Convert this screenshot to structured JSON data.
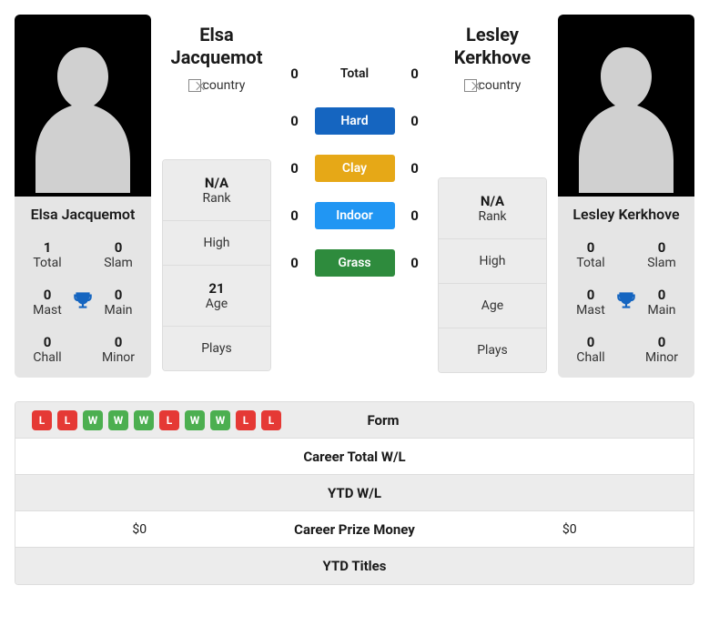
{
  "colors": {
    "hard": "#1565c0",
    "clay": "#e6a817",
    "indoor": "#2196f3",
    "grass": "#2e8b3d",
    "win": "#4caf50",
    "loss": "#e53935",
    "trophy": "#1565c0",
    "silhouette": "#d0d0d0"
  },
  "h2h": {
    "total_label": "Total",
    "hard_label": "Hard",
    "clay_label": "Clay",
    "indoor_label": "Indoor",
    "grass_label": "Grass",
    "p1": {
      "total": "0",
      "hard": "0",
      "clay": "0",
      "indoor": "0",
      "grass": "0"
    },
    "p2": {
      "total": "0",
      "hard": "0",
      "clay": "0",
      "indoor": "0",
      "grass": "0"
    }
  },
  "player1": {
    "name_line1": "Elsa",
    "name_line2": "Jacquemot",
    "card_name": "Elsa Jacquemot",
    "flag_alt": "country",
    "stats": {
      "total": "1",
      "slam": "0",
      "mast": "0",
      "main": "0",
      "chall": "0",
      "minor": "0"
    },
    "info": {
      "rank": "N/A",
      "high": "",
      "age": "21",
      "plays": ""
    }
  },
  "player2": {
    "name_line1": "Lesley",
    "name_line2": "Kerkhove",
    "card_name": "Lesley Kerkhove",
    "flag_alt": "country",
    "stats": {
      "total": "0",
      "slam": "0",
      "mast": "0",
      "main": "0",
      "chall": "0",
      "minor": "0"
    },
    "info": {
      "rank": "N/A",
      "high": "",
      "age": "",
      "plays": ""
    }
  },
  "labels": {
    "total": "Total",
    "slam": "Slam",
    "mast": "Mast",
    "main": "Main",
    "chall": "Chall",
    "minor": "Minor",
    "rank": "Rank",
    "high": "High",
    "age": "Age",
    "plays": "Plays"
  },
  "form": {
    "p1": [
      "L",
      "L",
      "W",
      "W",
      "W",
      "L",
      "W",
      "W",
      "L",
      "L"
    ],
    "p2": []
  },
  "bottom": {
    "form": "Form",
    "career_wl": "Career Total W/L",
    "ytd_wl": "YTD W/L",
    "career_prize": "Career Prize Money",
    "ytd_titles": "YTD Titles",
    "p1_prize": "$0",
    "p2_prize": "$0"
  }
}
